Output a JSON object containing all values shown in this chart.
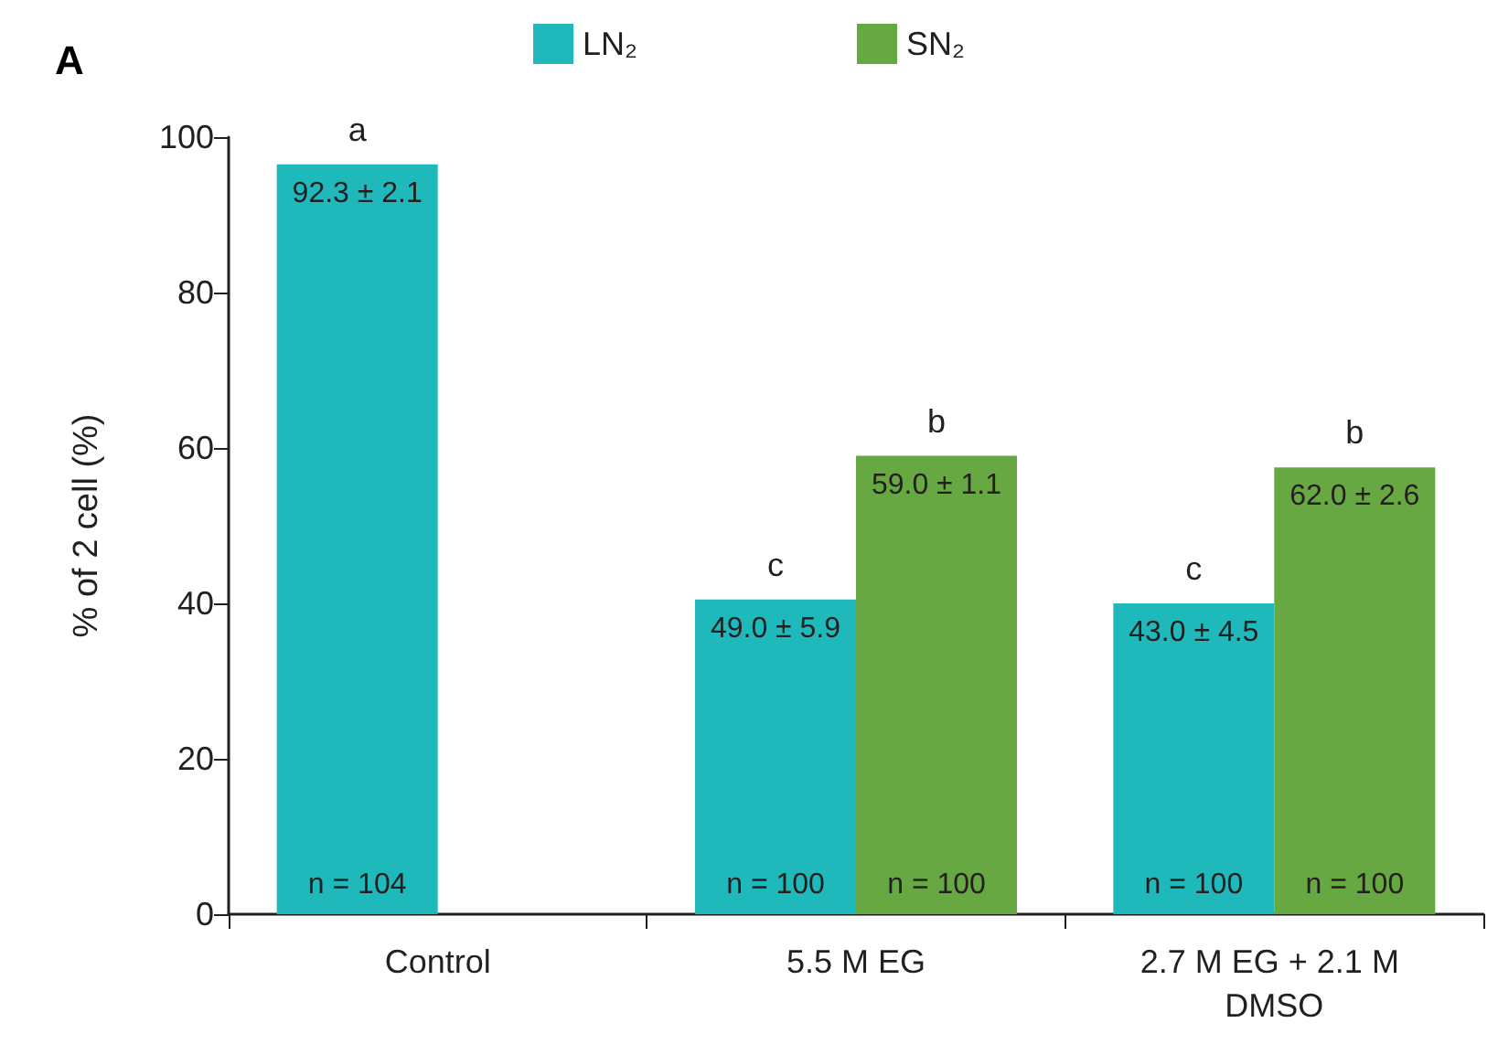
{
  "chart_data": {
    "type": "bar",
    "ylabel": "% of 2 cell (%)",
    "categories": [
      "Control",
      "5.5 M EG",
      "2.7 M EG + 2.1 M DMSO"
    ],
    "series": [
      {
        "name": "LN₂",
        "color": "#20b9bb",
        "values": [
          96.5,
          40.5,
          40
        ]
      },
      {
        "name": "SN₂",
        "color": "#68a843",
        "values": [
          null,
          59,
          57.5
        ]
      }
    ],
    "ylim": [
      0,
      100
    ],
    "yticks": [
      0,
      20,
      40,
      60,
      80,
      100
    ],
    "grid": false,
    "legend": "top",
    "annotations": [
      "A",
      {
        "text": "a",
        "x": "Control",
        "y": 96.5
      },
      {
        "text": "92.3 ± 2.1",
        "x": "Control",
        "y": 96.5
      },
      {
        "text": "c",
        "x": "5.5 M EG",
        "y": 40.5
      },
      {
        "text": "49.0 ± 5.9",
        "x": "5.5 M EG",
        "y": 40.5
      },
      {
        "text": "b",
        "x": "5.5 M EG",
        "y": 59
      },
      {
        "text": "59.0 ± 1.1",
        "x": "5.5 M EG",
        "y": 59
      },
      {
        "text": "c",
        "x": "2.7 M EG + 2.1 M DMSO",
        "y": 40
      },
      {
        "text": "43.0 ± 4.5",
        "x": "2.7 M EG + 2.1 M DMSO",
        "y": 40
      },
      {
        "text": "b",
        "x": "2.7 M EG + 2.1 M DMSO",
        "y": 57.5
      },
      {
        "text": "62.0 ± 2.6",
        "x": "2.7 M EG + 2.1 M DMSO",
        "y": 57.5
      },
      {
        "text": "n = 104",
        "x": "Control",
        "y": 0
      },
      {
        "text": "n = 100",
        "x": "5.5 M EG",
        "y": 0
      },
      {
        "text": "n = 100",
        "x": "5.5 M EG",
        "y": 0
      },
      {
        "text": "n = 100",
        "x": "2.7 M EG + 2.1 M DMSO",
        "y": 0
      },
      {
        "text": "n = 100",
        "x": "2.7 M EG + 2.1 M DMSO",
        "y": 0
      }
    ]
  }
}
